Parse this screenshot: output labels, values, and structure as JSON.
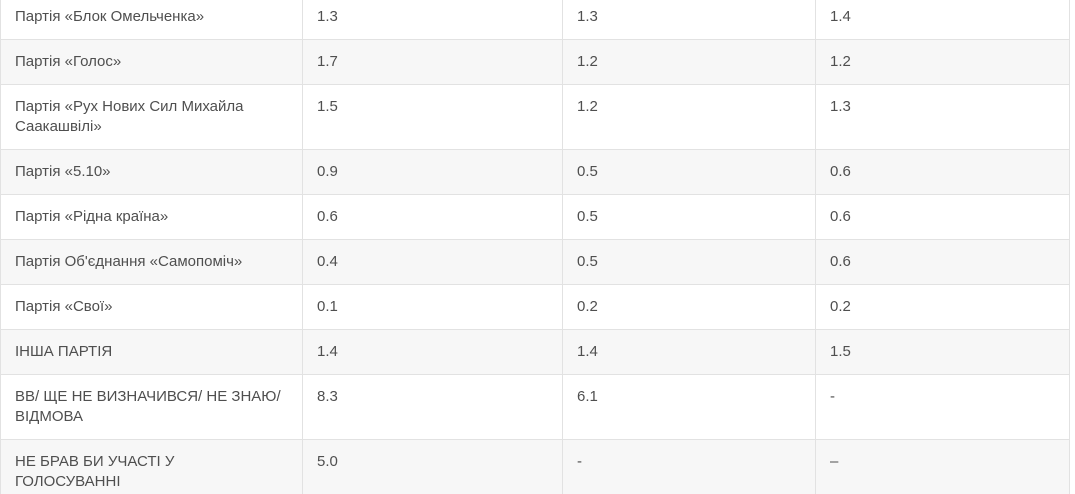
{
  "colors": {
    "background": "#ffffff",
    "row_stripe": "#f7f7f7",
    "border": "#e2e2e2",
    "text": "#4f4f4f"
  },
  "chart_data": {
    "type": "table",
    "header_visible": false,
    "grid": true,
    "rows": [
      {
        "label": "Партія «Блок Омельченка»",
        "values": [
          "1.3",
          "1.3",
          "1.4"
        ]
      },
      {
        "label": "Партія «Голос»",
        "values": [
          "1.7",
          "1.2",
          "1.2"
        ]
      },
      {
        "label": "Партія «Рух Нових Сил Михайла Саакашвілі»",
        "values": [
          "1.5",
          "1.2",
          "1.3"
        ]
      },
      {
        "label": "Партія «5.10»",
        "values": [
          "0.9",
          "0.5",
          "0.6"
        ]
      },
      {
        "label": "Партія «Рідна країна»",
        "values": [
          "0.6",
          "0.5",
          "0.6"
        ]
      },
      {
        "label": "Партія Об'єднання «Самопоміч»",
        "values": [
          "0.4",
          "0.5",
          "0.6"
        ]
      },
      {
        "label": "Партія «Свої»",
        "values": [
          "0.1",
          "0.2",
          "0.2"
        ]
      },
      {
        "label": "ІНША ПАРТІЯ",
        "values": [
          "1.4",
          "1.4",
          "1.5"
        ]
      },
      {
        "label": "ВВ/ ЩЕ НЕ ВИЗНАЧИВСЯ/ НЕ ЗНАЮ/ ВІДМОВА",
        "values": [
          "8.3",
          "6.1",
          "-"
        ]
      },
      {
        "label": "НЕ БРАВ БИ УЧАСТІ У ГОЛОСУВАННІ",
        "values": [
          "5.0",
          "-",
          "–"
        ]
      }
    ]
  }
}
